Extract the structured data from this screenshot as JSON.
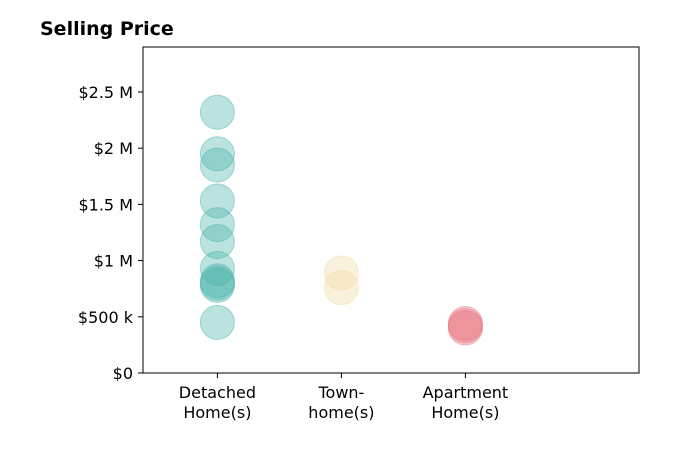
{
  "chart_data": {
    "type": "scatter",
    "title": "Selling Price",
    "xlabel": "",
    "ylabel": "",
    "categories": [
      [
        "Detached",
        "Home(s)"
      ],
      [
        "Town-",
        "home(s)"
      ],
      [
        "Apartment",
        "Home(s)"
      ]
    ],
    "xlim": [
      -0.6,
      3.4
    ],
    "ylim": [
      0,
      2900000
    ],
    "yticks": [
      0,
      500000,
      1000000,
      1500000,
      2000000,
      2500000
    ],
    "ytick_labels": [
      "$0",
      "$500 k",
      "$1 M",
      "$1.5 M",
      "$2 M",
      "$2.5 M"
    ],
    "grid": false,
    "series": [
      {
        "category_index": 0,
        "color": "#4db6ac",
        "values": [
          2320000,
          1950000,
          1850000,
          1530000,
          1320000,
          1170000,
          930000,
          820000,
          780000,
          800000,
          450000
        ]
      },
      {
        "category_index": 1,
        "color": "#f3d9a2",
        "values": [
          890000,
          760000
        ]
      },
      {
        "category_index": 2,
        "color": "#e8737d",
        "values": [
          440000,
          400000,
          420000
        ]
      }
    ]
  }
}
